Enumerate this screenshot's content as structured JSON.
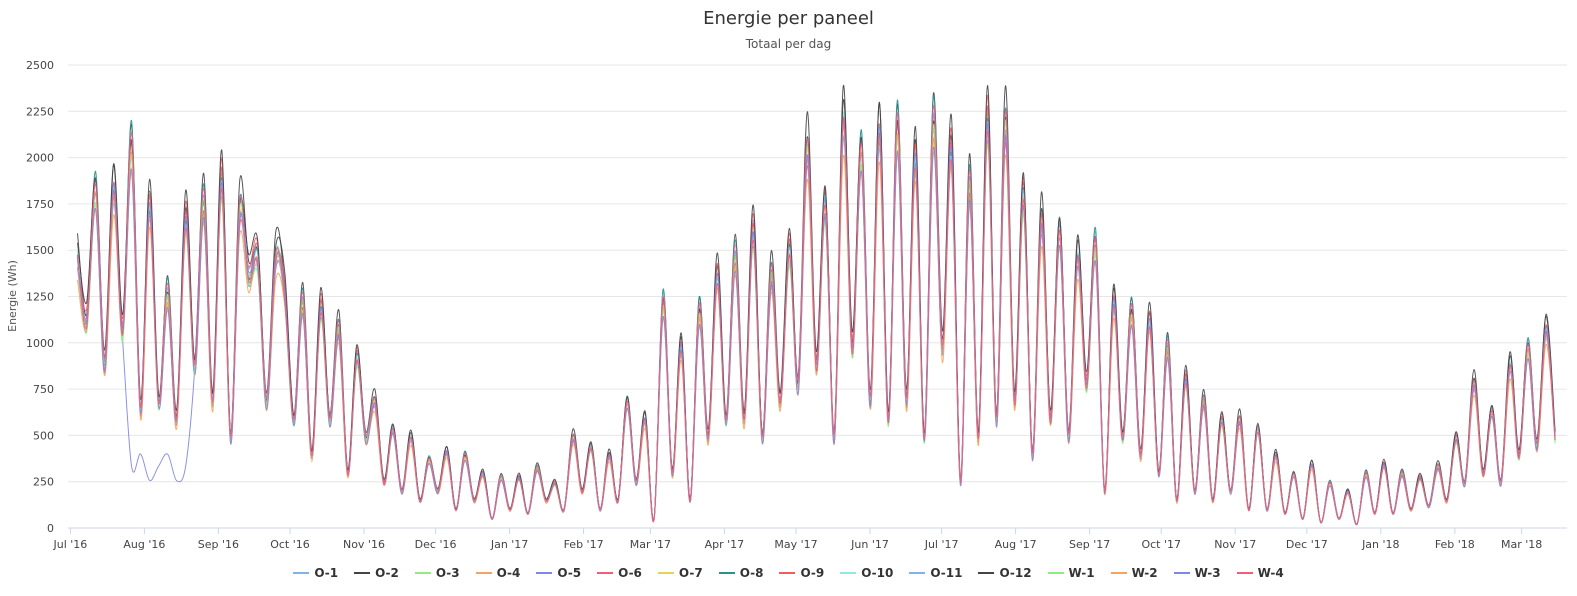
{
  "chart_data": {
    "type": "line",
    "title": "Energie per paneel",
    "subtitle": "Totaal per dag",
    "ylabel": "Energie (Wh)",
    "xlabel": "",
    "ylim": [
      0,
      2500
    ],
    "yticks": [
      0,
      250,
      500,
      750,
      1000,
      1250,
      1500,
      1750,
      2000,
      2250,
      2500
    ],
    "xlim": [
      "2016-06-30",
      "2018-03-20"
    ],
    "xticks": [
      {
        "date": "2016-07-01",
        "label": "Jul '16"
      },
      {
        "date": "2016-08-01",
        "label": "Aug '16"
      },
      {
        "date": "2016-09-01",
        "label": "Sep '16"
      },
      {
        "date": "2016-10-01",
        "label": "Oct '16"
      },
      {
        "date": "2016-11-01",
        "label": "Nov '16"
      },
      {
        "date": "2016-12-01",
        "label": "Dec '16"
      },
      {
        "date": "2017-01-01",
        "label": "Jan '17"
      },
      {
        "date": "2017-02-01",
        "label": "Feb '17"
      },
      {
        "date": "2017-03-01",
        "label": "Mar '17"
      },
      {
        "date": "2017-04-01",
        "label": "Apr '17"
      },
      {
        "date": "2017-05-01",
        "label": "May '17"
      },
      {
        "date": "2017-06-01",
        "label": "Jun '17"
      },
      {
        "date": "2017-07-01",
        "label": "Jul '17"
      },
      {
        "date": "2017-08-01",
        "label": "Aug '17"
      },
      {
        "date": "2017-09-01",
        "label": "Sep '17"
      },
      {
        "date": "2017-10-01",
        "label": "Oct '17"
      },
      {
        "date": "2017-11-01",
        "label": "Nov '17"
      },
      {
        "date": "2017-12-01",
        "label": "Dec '17"
      },
      {
        "date": "2018-01-01",
        "label": "Jan '18"
      },
      {
        "date": "2018-02-01",
        "label": "Feb '18"
      },
      {
        "date": "2018-03-01",
        "label": "Mar '18"
      }
    ],
    "grid": true,
    "legend_placement": "bottom-center",
    "data_start": "2016-07-04",
    "data_end": "2018-03-15",
    "base_values": [
      1500,
      1150,
      1880,
      900,
      1880,
      1100,
      2120,
      650,
      1780,
      700,
      1300,
      600,
      1720,
      900,
      1800,
      700,
      1940,
      500,
      1750,
      1400,
      1500,
      700,
      1500,
      1300,
      600,
      1250,
      400,
      1230,
      600,
      1100,
      300,
      950,
      500,
      700,
      250,
      550,
      200,
      500,
      150,
      380,
      200,
      420,
      100,
      400,
      150,
      300,
      50,
      280,
      100,
      280,
      80,
      330,
      150,
      250,
      100,
      500,
      200,
      450,
      100,
      400,
      150,
      700,
      250,
      600,
      50,
      1250,
      300,
      1000,
      150,
      1200,
      500,
      1400,
      600,
      1500,
      600,
      1650,
      500,
      1400,
      700,
      1550,
      800,
      2100,
      900,
      1800,
      500,
      2250,
      1000,
      2100,
      700,
      2200,
      600,
      2230,
      700,
      2050,
      500,
      2240,
      1000,
      2100,
      250,
      1900,
      500,
      2270,
      600,
      2230,
      700,
      1850,
      400,
      1700,
      600,
      1650,
      500,
      1500,
      800,
      1570,
      200,
      1250,
      500,
      1200,
      400,
      1150,
      300,
      1000,
      150,
      830,
      200,
      700,
      150,
      600,
      200,
      600,
      100,
      550,
      100,
      400,
      80,
      300,
      50,
      350,
      30,
      250,
      50,
      200,
      20,
      300,
      80,
      350,
      80,
      300,
      100,
      280,
      120,
      340,
      150,
      500,
      250,
      800,
      300,
      650,
      250,
      900,
      400,
      1000,
      450,
      1100,
      500
    ],
    "series": [
      {
        "name": "O-1",
        "color": "#7cb5ec",
        "scale": 0.97
      },
      {
        "name": "O-2",
        "color": "#434348",
        "scale": 1.03
      },
      {
        "name": "O-3",
        "color": "#90ed7d",
        "scale": 0.98
      },
      {
        "name": "O-4",
        "color": "#f7a35c",
        "scale": 0.94
      },
      {
        "name": "O-5",
        "color": "#8085e9",
        "scale": 0.96,
        "low_period": {
          "from": "2016-07-23",
          "to": "2016-08-22",
          "value": 330
        }
      },
      {
        "name": "O-6",
        "color": "#f15c80",
        "scale": 0.97
      },
      {
        "name": "O-7",
        "color": "#e4d354",
        "scale": 0.95
      },
      {
        "name": "O-8",
        "color": "#2b908f",
        "scale": 1.0
      },
      {
        "name": "O-9",
        "color": "#f45b5b",
        "scale": 0.99
      },
      {
        "name": "O-10",
        "color": "#91e8e1",
        "scale": 0.96
      },
      {
        "name": "O-11",
        "color": "#7cb5ec",
        "scale": 0.97
      },
      {
        "name": "O-12",
        "color": "#434348",
        "scale": 1.02
      },
      {
        "name": "W-1",
        "color": "#90ed7d",
        "scale": 0.95
      },
      {
        "name": "W-2",
        "color": "#f7a35c",
        "scale": 0.93
      },
      {
        "name": "W-3",
        "color": "#8085e9",
        "scale": 0.95
      },
      {
        "name": "W-4",
        "color": "#f15c80",
        "scale": 0.98
      }
    ]
  }
}
